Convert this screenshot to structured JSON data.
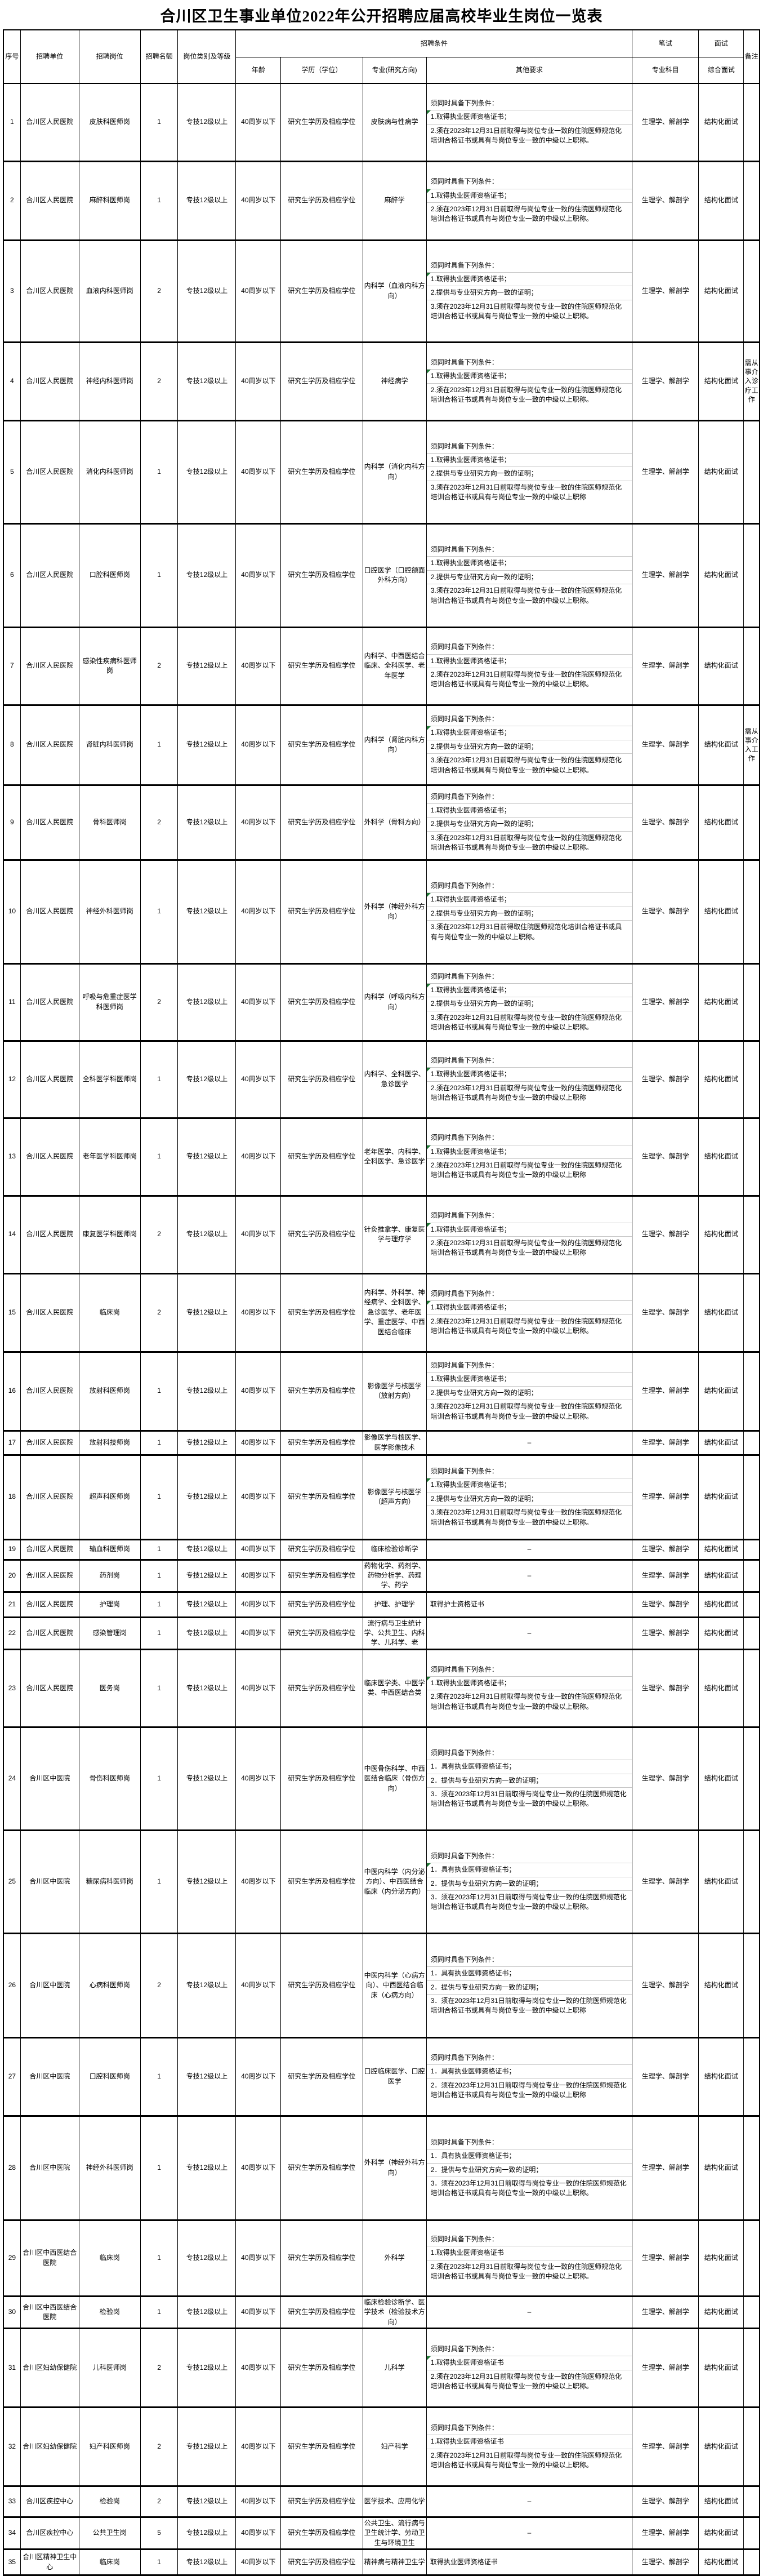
{
  "title": "合川区卫生事业单位2022年公开招聘应届高校毕业生岗位一览表",
  "header": {
    "seq": "序号",
    "unit": "招聘单位",
    "post": "招聘岗位",
    "quota": "招聘名额",
    "category": "岗位类别及等级",
    "conditions_group": "招聘条件",
    "age": "年龄",
    "edu": "学历（学位）",
    "major": "专业(研究方向)",
    "other": "其他要求",
    "written": "笔试",
    "written_sub": "专业科目",
    "interview": "面试",
    "interview_sub": "综合面试",
    "remark": "备注"
  },
  "rows": [
    {
      "seq": "1",
      "unit": "合川区人民医院",
      "post": "皮肤科医师岗",
      "quota": "1",
      "category": "专技12级以上",
      "age": "40周岁以下",
      "edu": "研究生学历及相应学位",
      "major": "皮肤病与性病学",
      "other": {
        "intro": "须同时具备下列条件：",
        "items": [
          {
            "text": "1.取得执业医师资格证书；",
            "marker": true
          },
          {
            "text": "2.须在2023年12月31日前取得与岗位专业一致的住院医师规范化培训合格证书或具有与岗位专业一致的中级以上职称。"
          }
        ]
      },
      "subject": "生理学、解剖学",
      "interview": "结构化面试",
      "remark": "",
      "h": 138
    },
    {
      "seq": "2",
      "unit": "合川区人民医院",
      "post": "麻醉科医师岗",
      "quota": "1",
      "category": "专技12级以上",
      "age": "40周岁以下",
      "edu": "研究生学历及相应学位",
      "major": "麻醉学",
      "other": {
        "intro": "须同时具备下列条件：",
        "items": [
          {
            "text": "1.取得执业医师资格证书；",
            "marker": true
          },
          {
            "text": "2.须在2023年12月31日前取得与岗位专业一致的住院医师规范化培训合格证书或具有与岗位专业一致的中级以上职称。"
          }
        ]
      },
      "subject": "生理学、解剖学",
      "interview": "结构化面试",
      "remark": "",
      "h": 140
    },
    {
      "seq": "3",
      "unit": "合川区人民医院",
      "post": "血液内科医师岗",
      "quota": "2",
      "category": "专技12级以上",
      "age": "40周岁以下",
      "edu": "研究生学历及相应学位",
      "major": "内科学（血液内科方向）",
      "other": {
        "intro": "须同时具备下列条件：",
        "items": [
          {
            "text": "1.取得执业医师资格证书；",
            "marker": true
          },
          {
            "text": "2.提供与专业研究方向一致的证明；"
          },
          {
            "text": "3.须在2023年12月31日前取得与岗位专业一致的住院医师规范化培训合格证书或具有与岗位专业一致的中级以上职称。"
          }
        ]
      },
      "subject": "生理学、解剖学",
      "interview": "结构化面试",
      "remark": "",
      "h": 181
    },
    {
      "seq": "4",
      "unit": "合川区人民医院",
      "post": "神经内科医师岗",
      "quota": "2",
      "category": "专技12级以上",
      "age": "40周岁以下",
      "edu": "研究生学历及相应学位",
      "major": "神经病学",
      "other": {
        "intro": "须同时具备下列条件：",
        "items": [
          {
            "text": "1.取得执业医师资格证书；",
            "marker": true
          },
          {
            "text": "2.须在2023年12月31日前取得与岗位专业一致的住院医师规范化培训合格证书或具有与岗位专业一致的中级以上职称。"
          }
        ]
      },
      "subject": "生理学、解剖学",
      "interview": "结构化面试",
      "remark": "需从事介入诊疗工作",
      "h": 139
    },
    {
      "seq": "5",
      "unit": "合川区人民医院",
      "post": "消化内科医师岗",
      "quota": "1",
      "category": "专技12级以上",
      "age": "40周岁以下",
      "edu": "研究生学历及相应学位",
      "major": "内科学（消化内科方向）",
      "other": {
        "intro": "须同时具备下列条件：",
        "items": [
          {
            "text": "1.取得执业医师资格证书；"
          },
          {
            "text": "2.提供与专业研究方向一致的证明；"
          },
          {
            "text": "3.须在2023年12月31日前取得与岗位专业一致的住院医师规范化培训合格证书或具有与岗位专业一致的中级以上职称"
          }
        ]
      },
      "subject": "生理学、解剖学",
      "interview": "结构化面试",
      "remark": "",
      "h": 183
    },
    {
      "seq": "6",
      "unit": "合川区人民医院",
      "post": "口腔科医师岗",
      "quota": "1",
      "category": "专技12级以上",
      "age": "40周岁以下",
      "edu": "研究生学历及相应学位",
      "major": "口腔医学（口腔颌面外科方向）",
      "other": {
        "intro": "须同时具备下列条件：",
        "items": [
          {
            "text": "1.取得执业医师资格证书；"
          },
          {
            "text": "2.提供与专业研究方向一致的证明；"
          },
          {
            "text": "3.须在2023年12月31日前取得与岗位专业一致的住院医师规范化培训合格证书或具有与岗位专业一致的中级以上职称。"
          }
        ]
      },
      "subject": "生理学、解剖学",
      "interview": "结构化面试",
      "remark": "",
      "h": 184
    },
    {
      "seq": "7",
      "unit": "合川区人民医院",
      "post": "感染性疾病科医师岗",
      "quota": "2",
      "category": "专技12级以上",
      "age": "40周岁以下",
      "edu": "研究生学历及相应学位",
      "major": "内科学、中西医结合临床、全科医学、老年医学",
      "other": {
        "intro": "须同时具备下列条件：",
        "items": [
          {
            "text": "1.取得执业医师资格证书；"
          },
          {
            "text": "2.须在2023年12月31日前取得与岗位专业一致的住院医师规范化培训合格证书或具有与岗位专业一致的中级以上职称。"
          }
        ]
      },
      "subject": "生理学、解剖学",
      "interview": "结构化面试",
      "remark": "",
      "h": 138
    },
    {
      "seq": "8",
      "unit": "合川区人民医院",
      "post": "肾脏内科医师岗",
      "quota": "1",
      "category": "专技12级以上",
      "age": "40周岁以下",
      "edu": "研究生学历及相应学位",
      "major": "内科学（肾脏内科方向）",
      "other": {
        "intro": "须同时具备下列条件：",
        "items": [
          {
            "text": "1.取得执业医师资格证书；",
            "marker": true
          },
          {
            "text": "2.提供与专业研究方向一致的证明；"
          },
          {
            "text": "3.须在2023年12月31日前取得与岗位专业一致的住院医师规范化培训合格证书或具有与岗位专业一致的中级以上职称。"
          }
        ]
      },
      "subject": "生理学、解剖学",
      "interview": "结构化面试",
      "remark": "需从事介入工作",
      "h": 142
    },
    {
      "seq": "9",
      "unit": "合川区人民医院",
      "post": "骨科医师岗",
      "quota": "2",
      "category": "专技12级以上",
      "age": "40周岁以下",
      "edu": "研究生学历及相应学位",
      "major": "外科学（骨科方向）",
      "other": {
        "intro": "须同时具备下列条件：",
        "items": [
          {
            "text": "1.取得执业医师资格证书；"
          },
          {
            "text": "2.提供与专业研究方向一致的证明；"
          },
          {
            "text": "3.须在2023年12月31日前取得与岗位专业一致的住院医师规范化培训合格证书或具有与岗位专业一致的中级以上职称。"
          }
        ]
      },
      "subject": "生理学、解剖学",
      "interview": "结构化面试",
      "remark": "",
      "h": 133
    },
    {
      "seq": "10",
      "unit": "合川区人民医院",
      "post": "神经外科医师岗",
      "quota": "1",
      "category": "专技12级以上",
      "age": "40周岁以下",
      "edu": "研究生学历及相应学位",
      "major": "外科学（神经外科方向）",
      "other": {
        "intro": "须同时具备下列条件：",
        "items": [
          {
            "text": "1.取得执业医师资格证书；",
            "marker": true
          },
          {
            "text": "2.提供与专业研究方向一致的证明；"
          },
          {
            "text": "3.须在2023年12月31日前得取住院医师规范化培训合格证书或具有与岗位专业一致的中级以上职称。"
          }
        ]
      },
      "subject": "生理学、解剖学",
      "interview": "结构化面试",
      "remark": "",
      "h": 184
    },
    {
      "seq": "11",
      "unit": "合川区人民医院",
      "post": "呼吸与危重症医学科医师岗",
      "quota": "2",
      "category": "专技12级以上",
      "age": "40周岁以下",
      "edu": "研究生学历及相应学位",
      "major": "内科学（呼吸内科方向）",
      "other": {
        "intro": "须同时具备下列条件：",
        "items": [
          {
            "text": "1.取得执业医师资格证书；",
            "marker": true
          },
          {
            "text": "2.提供与专业研究方向一致的证明；"
          },
          {
            "text": "3.须在2023年12月31日前取得与岗位专业一致的住院医师规范化培训合格证书或具有与岗位专业一致的中级以上职称。"
          }
        ]
      },
      "subject": "生理学、解剖学",
      "interview": "结构化面试",
      "remark": "",
      "h": 137
    },
    {
      "seq": "12",
      "unit": "合川区人民医院",
      "post": "全科医学科医师岗",
      "quota": "1",
      "category": "专技12级以上",
      "age": "40周岁以下",
      "edu": "研究生学历及相应学位",
      "major": "内科学、全科医学、急诊医学",
      "other": {
        "intro": "须同时具备下列条件：",
        "items": [
          {
            "text": "1.取得执业医师资格证书；",
            "marker": true
          },
          {
            "text": "2.须在2023年12月31日前取得与岗位专业一致的住院医师规范化培训合格证书或具有与岗位专业一致的中级以上职称"
          }
        ]
      },
      "subject": "生理学、解剖学",
      "interview": "结构化面试",
      "remark": "",
      "h": 137
    },
    {
      "seq": "13",
      "unit": "合川区人民医院",
      "post": "老年医学科医师岗",
      "quota": "1",
      "category": "专技12级以上",
      "age": "40周岁以下",
      "edu": "研究生学历及相应学位",
      "major": "老年医学、内科学、全科医学、急诊医学",
      "other": {
        "intro": "须同时具备下列条件：",
        "items": [
          {
            "text": "1.取得执业医师资格证书；",
            "marker": true
          },
          {
            "text": "2.须在2023年12月31日前取得与岗位专业一致的住院医师规范化培训合格证书或具有与岗位专业一致的中级以上职称"
          }
        ]
      },
      "subject": "生理学、解剖学",
      "interview": "结构化面试",
      "remark": "",
      "h": 138
    },
    {
      "seq": "14",
      "unit": "合川区人民医院",
      "post": "康复医学科医师岗",
      "quota": "2",
      "category": "专技12级以上",
      "age": "40周岁以下",
      "edu": "研究生学历及相应学位",
      "major": "针灸推拿学、康复医学与理疗学",
      "other": {
        "intro": "须同时具备下列条件：",
        "items": [
          {
            "text": "1.取得执业医师资格证书；",
            "marker": true
          },
          {
            "text": "2.须在2023年12月31日前取得与岗位专业一致的住院医师规范化培训合格证书或具有与岗位专业一致的中级以上职称"
          }
        ]
      },
      "subject": "生理学、解剖学",
      "interview": "结构化面试",
      "remark": "",
      "h": 138
    },
    {
      "seq": "15",
      "unit": "合川区人民医院",
      "post": "临床岗",
      "quota": "2",
      "category": "专技12级以上",
      "age": "40周岁以下",
      "edu": "研究生学历及相应学位",
      "major": "内科学、外科学、神经病学、全科医学、急诊医学、老年医学、重症医学、中西医结合临床",
      "other": {
        "intro": "须同时具备下列条件：",
        "items": [
          {
            "text": "1.取得执业医师资格证书；",
            "marker": true
          },
          {
            "text": "2.须在2023年12月31日前取得与岗位专业一致的住院医师规范化培训合格证书或具有与岗位专业一致的中级以上职称。"
          }
        ]
      },
      "subject": "生理学、解剖学",
      "interview": "结构化面试",
      "remark": "",
      "h": 139
    },
    {
      "seq": "16",
      "unit": "合川区人民医院",
      "post": "放射科医师岗",
      "quota": "1",
      "category": "专技12级以上",
      "age": "40周岁以下",
      "edu": "研究生学历及相应学位",
      "major": "影像医学与核医学（放射方向）",
      "other": {
        "intro": "须同时具备下列条件：",
        "items": [
          {
            "text": "1.取得执业医师资格证书；"
          },
          {
            "text": "2.提供与专业研究方向一致的证明；"
          },
          {
            "text": "3.须在2023年12月31日前取得与岗位专业一致的住院医师规范化培训合格证书或具有与岗位专业一致的中级以上职称。"
          }
        ]
      },
      "subject": "生理学、解剖学",
      "interview": "结构化面试",
      "remark": "",
      "h": 140
    },
    {
      "seq": "17",
      "unit": "合川区人民医院",
      "post": "放射科技师岗",
      "quota": "1",
      "category": "专技12级以上",
      "age": "40周岁以下",
      "edu": "研究生学历及相应学位",
      "major": "影像医学与核医学、医学影像技术",
      "other": "–",
      "subject": "生理学、解剖学",
      "interview": "结构化面试",
      "remark": "",
      "h": 43
    },
    {
      "seq": "18",
      "unit": "合川区人民医院",
      "post": "超声科医师岗",
      "quota": "1",
      "category": "专技12级以上",
      "age": "40周岁以下",
      "edu": "研究生学历及相应学位",
      "major": "影像医学与核医学（超声方向）",
      "other": {
        "intro": "须同时具备下列条件：",
        "items": [
          {
            "text": "1.取得执业医师资格证书；",
            "marker": true
          },
          {
            "text": "2.提供与专业研究方向一致的证明；"
          },
          {
            "text": "3.须在2023年12月31日前取得与岗位专业一致的住院医师规范化培训合格证书或具有与岗位专业一致的中级以上职称。"
          }
        ]
      },
      "subject": "生理学、解剖学",
      "interview": "结构化面试",
      "remark": "",
      "h": 150
    },
    {
      "seq": "19",
      "unit": "合川区人民医院",
      "post": "输血科医师岗",
      "quota": "1",
      "category": "专技12级以上",
      "age": "40周岁以下",
      "edu": "研究生学历及相应学位",
      "major": "临床检验诊断学",
      "other": "–",
      "subject": "生理学、解剖学",
      "interview": "结构化面试",
      "remark": "",
      "h": 36
    },
    {
      "seq": "20",
      "unit": "合川区人民医院",
      "post": "药剂岗",
      "quota": "1",
      "category": "专技12级以上",
      "age": "40周岁以下",
      "edu": "研究生学历及相应学位",
      "major": "药物化学、药剂学、药物分析学、药理学、药学",
      "other": "–",
      "subject": "生理学、解剖学",
      "interview": "结构化面试",
      "remark": "",
      "h": 45
    },
    {
      "seq": "21",
      "unit": "合川区人民医院",
      "post": "护理岗",
      "quota": "1",
      "category": "专技12级以上",
      "age": "40周岁以下",
      "edu": "研究生学历及相应学位",
      "major": "护理、护理学",
      "other": "取得护士资格证书",
      "subject": "生理学、解剖学",
      "interview": "结构化面试",
      "remark": "",
      "h": 45
    },
    {
      "seq": "22",
      "unit": "合川区人民医院",
      "post": "感染管理岗",
      "quota": "1",
      "category": "专技12级以上",
      "age": "40周岁以下",
      "edu": "研究生学历及相应学位",
      "major": "流行病与卫生统计学、公共卫生、内科学、儿科学、老",
      "other": "–",
      "subject": "生理学、解剖学",
      "interview": "结构化面试",
      "remark": "",
      "h": 47
    },
    {
      "seq": "23",
      "unit": "合川区人民医院",
      "post": "医务岗",
      "quota": "1",
      "category": "专技12级以上",
      "age": "40周岁以下",
      "edu": "研究生学历及相应学位",
      "major": "临床医学类、中医学类、中西医结合类",
      "other": {
        "intro": "须同时具备下列条件：",
        "items": [
          {
            "text": "1.取得执业医师资格证书；",
            "marker": true
          },
          {
            "text": "2.须在2023年12月31日前取得与岗位专业一致的住院医师规范化培训合格证书或具有与岗位专业一致的中级以上职称。"
          }
        ]
      },
      "subject": "生理学、解剖学",
      "interview": "结构化面试",
      "remark": "",
      "h": 138
    },
    {
      "seq": "24",
      "unit": "合川区中医院",
      "post": "骨伤科医师岗",
      "quota": "1",
      "category": "专技12级以上",
      "age": "40周岁以下",
      "edu": "研究生学历及相应学位",
      "major": "中医骨伤科学、中西医结合临床（骨伤方向）",
      "other": {
        "intro": "须同时具备下列条件：",
        "items": [
          {
            "text": "1．具有执业医师资格证书；"
          },
          {
            "text": "2．提供与专业研究方向一致的证明；"
          },
          {
            "text": "3．须在2023年12月31日前取得与岗位专业一致的住院医师规范化培训合格证书或具有与岗位专业一致的中级以上职称。"
          }
        ]
      },
      "subject": "生理学、解剖学",
      "interview": "结构化面试",
      "remark": "",
      "h": 183
    },
    {
      "seq": "25",
      "unit": "合川区中医院",
      "post": "糖尿病科医师岗",
      "quota": "1",
      "category": "专技12级以上",
      "age": "40周岁以下",
      "edu": "研究生学历及相应学位",
      "major": "中医内科学（内分泌方向）、中西医结合临床（内分泌方向）",
      "other": {
        "intro": "须同时具备下列条件：",
        "items": [
          {
            "text": "1．具有执业医师资格证书；",
            "marker": true
          },
          {
            "text": "2．提供与专业研究方向一致的证明；"
          },
          {
            "text": "3．须在2023年12月31日前取得与岗位专业一致的住院医师规范化培训合格证书或具有与岗位专业一致的中级以上职称。"
          }
        ]
      },
      "subject": "生理学、解剖学",
      "interview": "结构化面试",
      "remark": "",
      "h": 183
    },
    {
      "seq": "26",
      "unit": "合川区中医院",
      "post": "心病科医师岗",
      "quota": "2",
      "category": "专技12级以上",
      "age": "40周岁以下",
      "edu": "研究生学历及相应学位",
      "major": "中医内科学（心病方向）、中西医结合临床（心病方向）",
      "other": {
        "intro": "须同时具备下列条件：",
        "items": [
          {
            "text": "1．具有执业医师资格证书；"
          },
          {
            "text": "2．提供与专业研究方向一致的证明；"
          },
          {
            "text": "3．须在2023年12月31日前取得与岗位专业一致的住院医师规范化培训合格证书或具有与岗位专业一致的中级以上职称"
          }
        ]
      },
      "subject": "生理学、解剖学",
      "interview": "结构化面试",
      "remark": "",
      "h": 185
    },
    {
      "seq": "27",
      "unit": "合川区中医院",
      "post": "口腔科医师岗",
      "quota": "1",
      "category": "专技12级以上",
      "age": "40周岁以下",
      "edu": "研究生学历及相应学位",
      "major": "口腔临床医学、口腔医学",
      "other": {
        "intro": "须同时具备下列条件：",
        "items": [
          {
            "text": "1．具有执业医师资格证书；"
          },
          {
            "text": "2．须在2023年12月31日前取得与岗位专业一致的住院医师规范化培训合格证书或具有与岗位专业一致的中级以上职称"
          }
        ]
      },
      "subject": "生理学、解剖学",
      "interview": "结构化面试",
      "remark": "",
      "h": 139
    },
    {
      "seq": "28",
      "unit": "合川区中医院",
      "post": "神经外科医师岗",
      "quota": "1",
      "category": "专技12级以上",
      "age": "40周岁以下",
      "edu": "研究生学历及相应学位",
      "major": "外科学（神经外科方向）",
      "other": {
        "intro": "须同时具备下列条件：",
        "items": [
          {
            "text": "1．具有执业医师资格证书；"
          },
          {
            "text": "2．提供与专业研究方向一致的证明；"
          },
          {
            "text": "3．须在2023年12月31日前取得与岗位专业一致的住院医师规范化培训合格证书或具有与岗位专业一致的中级以上职称。"
          }
        ]
      },
      "subject": "生理学、解剖学",
      "interview": "结构化面试",
      "remark": "",
      "h": 185
    },
    {
      "seq": "29",
      "unit": "合川区中西医结合医院",
      "post": "临床岗",
      "quota": "1",
      "category": "专技12级以上",
      "age": "40周岁以下",
      "edu": "研究生学历及相应学位",
      "major": "外科学",
      "other": {
        "intro": "须同时具备下列条件：",
        "items": [
          {
            "text": "1.取得执业医师资格证书"
          },
          {
            "text": "2.须在2023年12月31日前取得与岗位专业一致的住院医师规范化培训合格证书或具有与岗位专业一致的中级以上职称。"
          }
        ]
      },
      "subject": "生理学、解剖学",
      "interview": "结构化面试",
      "remark": "",
      "h": 135
    },
    {
      "seq": "30",
      "unit": "合川区中西医结合医院",
      "post": "检验岗",
      "quota": "1",
      "category": "专技12级以上",
      "age": "40周岁以下",
      "edu": "研究生学历及相应学位",
      "major": "临床检验诊断学、医学技术（检验技术方向）",
      "other": "–",
      "subject": "生理学、解剖学",
      "interview": "结构化面试",
      "remark": "",
      "h": 46
    },
    {
      "seq": "31",
      "unit": "合川区妇幼保健院",
      "post": "儿科医师岗",
      "quota": "2",
      "category": "专技12级以上",
      "age": "40周岁以下",
      "edu": "研究生学历及相应学位",
      "major": "儿科学",
      "other": {
        "intro": "须同时具备下列条件：",
        "items": [
          {
            "text": "1.取得执业医师资格证书",
            "marker": true
          },
          {
            "text": "2.须在2023年12月31日前取得与岗位专业一致的住院医师规范化培训合格证书或具有与岗位专业一致的中级以上职称。"
          }
        ]
      },
      "subject": "生理学、解剖学",
      "interview": "结构化面试",
      "remark": "",
      "h": 140
    },
    {
      "seq": "32",
      "unit": "合川区妇幼保健院",
      "post": "妇产科医师岗",
      "quota": "2",
      "category": "专技12级以上",
      "age": "40周岁以下",
      "edu": "研究生学历及相应学位",
      "major": "妇产科学",
      "other": {
        "intro": "须同时具备下列条件：",
        "items": [
          {
            "text": "1.取得执业医师资格证书"
          },
          {
            "text": "2.须在2023年12月31日前取得与岗位专业一致的住院医师规范化培训合格证书或具有与岗位专业一致的中级以上职称。"
          }
        ]
      },
      "subject": "生理学、解剖学",
      "interview": "结构化面试",
      "remark": "",
      "h": 140
    },
    {
      "seq": "33",
      "unit": "合川区疾控中心",
      "post": "检验岗",
      "quota": "2",
      "category": "专技12级以上",
      "age": "40周岁以下",
      "edu": "研究生学历及相应学位",
      "major": "医学技术、应用化学",
      "other": "–",
      "subject": "生理学、解剖学",
      "interview": "结构化面试",
      "remark": "",
      "h": 55
    },
    {
      "seq": "34",
      "unit": "合川区疾控中心",
      "post": "公共卫生岗",
      "quota": "5",
      "category": "专技12级以上",
      "age": "40周岁以下",
      "edu": "研究生学历及相应学位",
      "major": "公共卫生、流行病与卫生统计学、劳动卫生与环境卫生",
      "other": "–",
      "subject": "生理学、解剖学",
      "interview": "结构化面试",
      "remark": "",
      "h": 57
    },
    {
      "seq": "35",
      "unit": "合川区精神卫生中心",
      "post": "临床岗",
      "quota": "1",
      "category": "专技12级以上",
      "age": "40周岁以下",
      "edu": "研究生学历及相应学位",
      "major": "精神病与精神卫生学",
      "other": "取得执业医师资格证书",
      "subject": "生理学、解剖学",
      "interview": "结构化面试",
      "remark": "",
      "h": 46
    }
  ]
}
